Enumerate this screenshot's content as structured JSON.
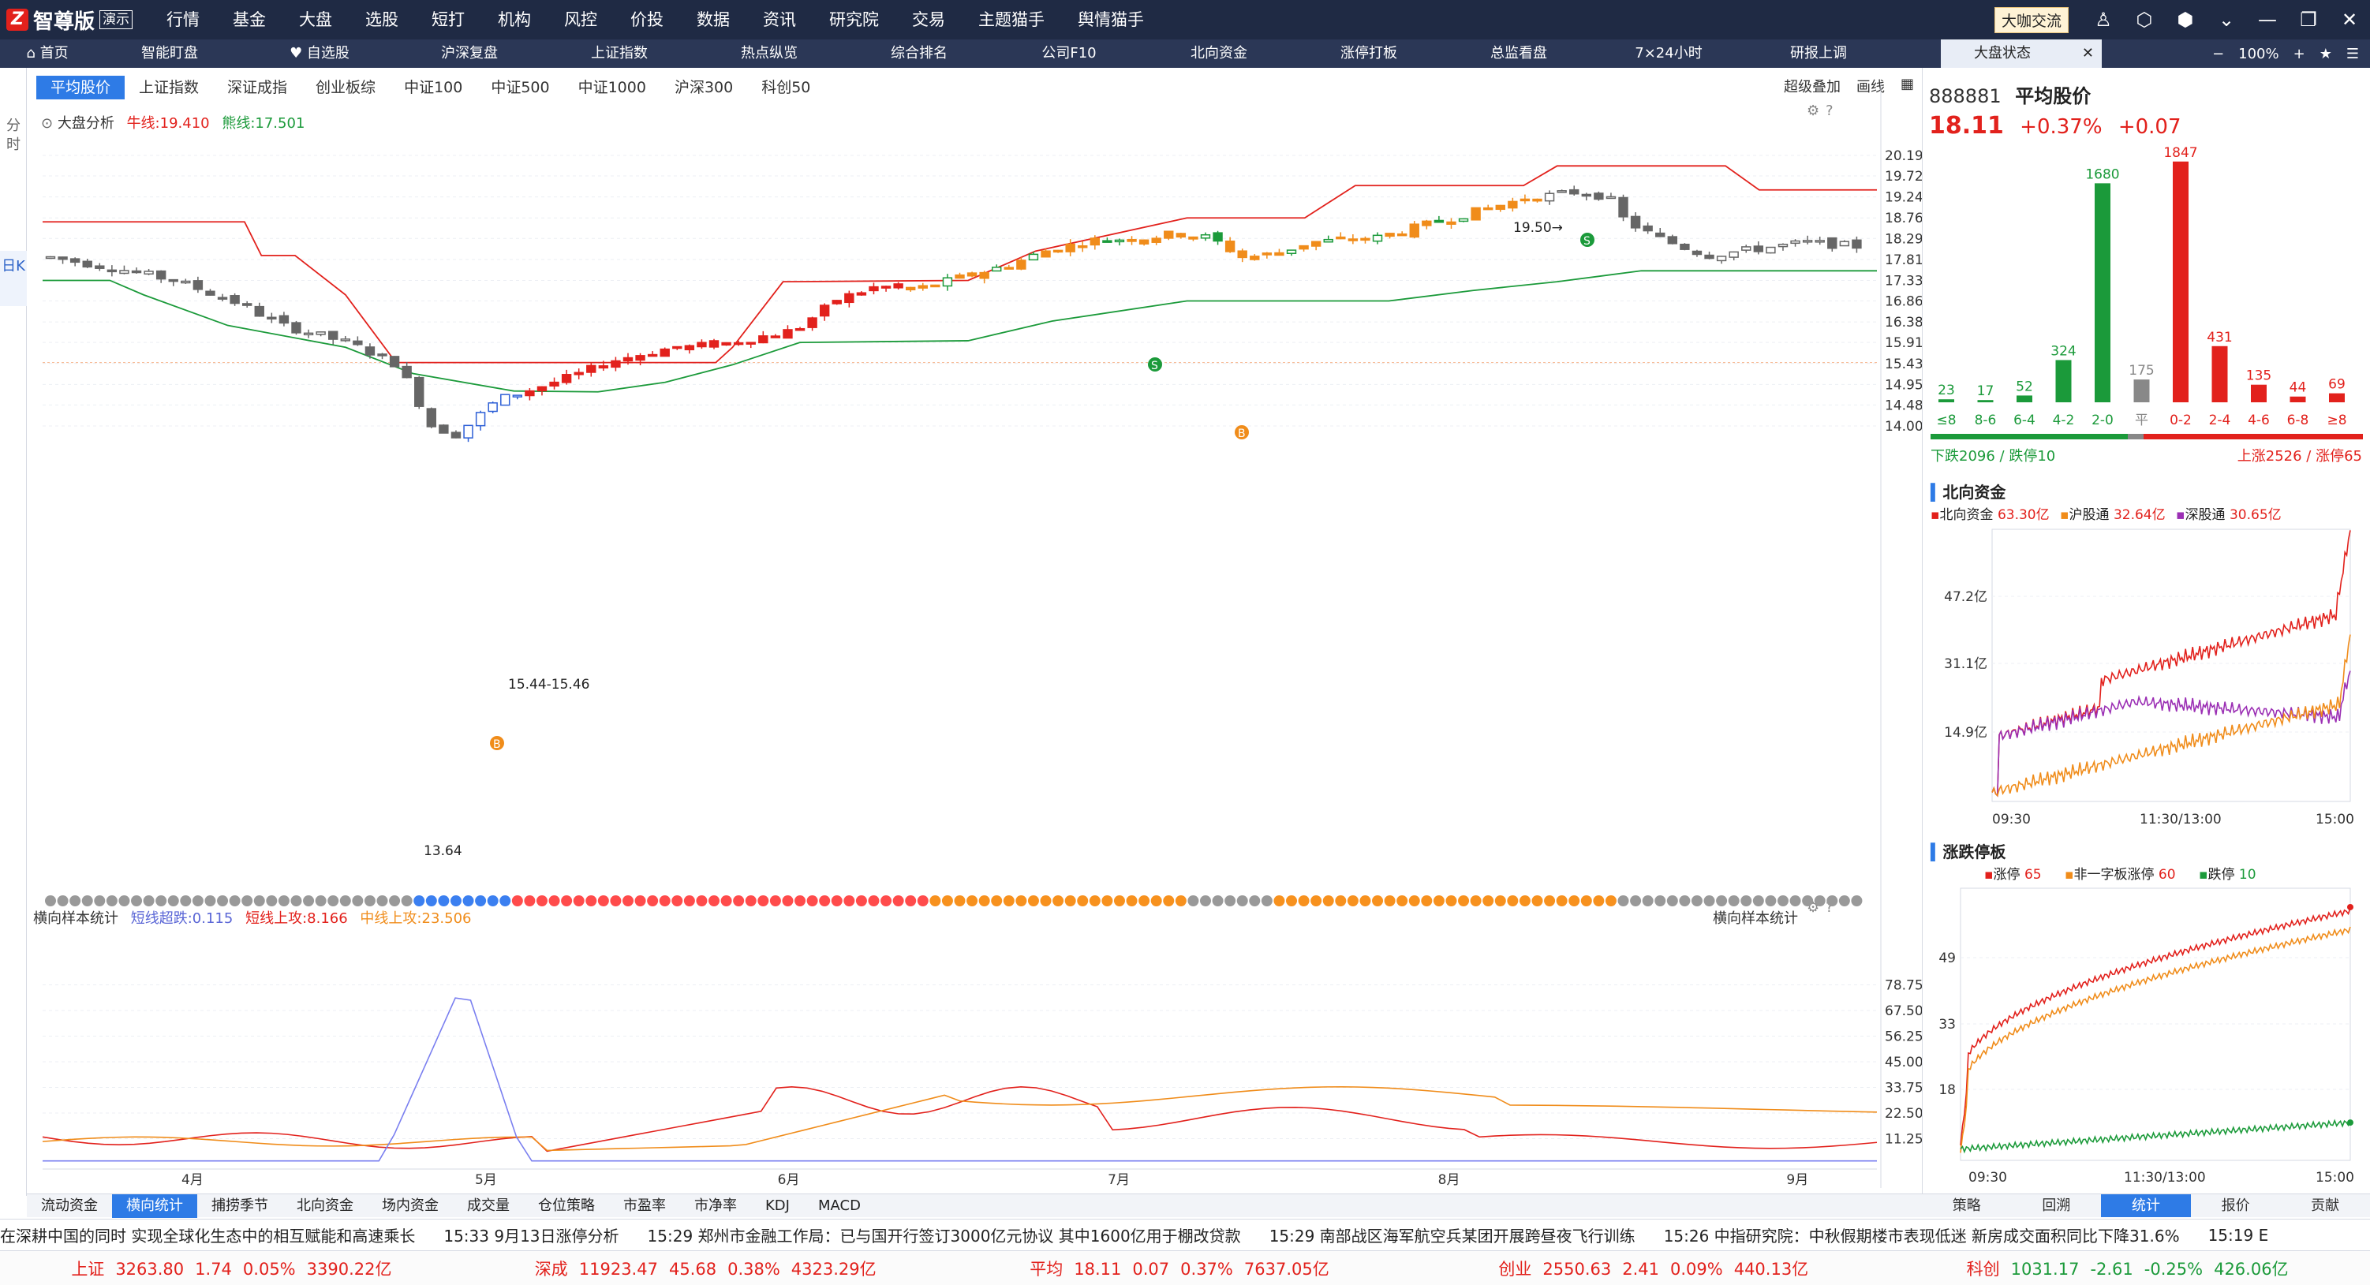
{
  "app": {
    "logo_text": "智尊版",
    "logo_badge": "演示",
    "menu": [
      "行情",
      "基金",
      "大盘",
      "选股",
      "短打",
      "机构",
      "风控",
      "价投",
      "数据",
      "资讯",
      "研究院",
      "交易",
      "主题猫手",
      "舆情猫手"
    ],
    "exchange_btn": "大咖交流"
  },
  "tabs": [
    "首页",
    "智能盯盘",
    "自选股",
    "沪深复盘",
    "上证指数",
    "热点纵览",
    "综合排名",
    "公司F10",
    "北向资金",
    "涨停打板",
    "总监看盘",
    "7×24小时",
    "研报上调"
  ],
  "active_tab": "大盘状态",
  "zoom": "100%",
  "left_tabs": [
    "分时",
    "日K"
  ],
  "index_tabs": [
    "平均股价",
    "上证指数",
    "深证成指",
    "创业板综",
    "中证100",
    "中证500",
    "中证1000",
    "沪深300",
    "科创50"
  ],
  "right_tools": [
    "超级叠加",
    "画线"
  ],
  "main_legend": {
    "name": "大盘分析",
    "bull": "牛线:19.410",
    "bear": "熊线:17.501"
  },
  "price_axis": [
    "20.19",
    "19.72",
    "19.24",
    "18.76",
    "18.29",
    "17.81",
    "17.33",
    "16.86",
    "16.38",
    "15.91",
    "15.43",
    "14.95",
    "14.48",
    "14.00"
  ],
  "annotations": {
    "high": "19.50→",
    "low": "13.64",
    "level": "15.44-15.46"
  },
  "lower_legend": {
    "name": "横向样本统计",
    "a": "短线超跌:0.115",
    "b": "短线上攻:8.166",
    "c": "中线上攻:23.506",
    "right": "横向样本统计"
  },
  "lower_axis": [
    "78.75",
    "67.50",
    "56.25",
    "45.00",
    "33.75",
    "22.50",
    "11.25"
  ],
  "months": [
    "4月",
    "5月",
    "6月",
    "7月",
    "8月",
    "9月"
  ],
  "bottom_tabs": [
    "流动资金",
    "横向统计",
    "捕捞季节",
    "北向资金",
    "场内资金",
    "成交量",
    "仓位策略",
    "市盈率",
    "市净率",
    "KDJ",
    "MACD"
  ],
  "stock": {
    "code": "888881",
    "name": "平均股价",
    "price": "18.11",
    "pct": "+0.37%",
    "chg": "+0.07"
  },
  "dist": {
    "labels": [
      "≤8",
      "8-6",
      "6-4",
      "4-2",
      "2-0",
      "平",
      "0-2",
      "2-4",
      "4-6",
      "6-8",
      "≥8"
    ],
    "values": [
      23,
      17,
      52,
      324,
      1680,
      175,
      1847,
      431,
      135,
      44,
      69
    ],
    "down": "下跌2096 / 跌停10",
    "up": "上涨2526 / 涨停65"
  },
  "north": {
    "title": "北向资金",
    "s1": "北向资金",
    "v1": "63.30亿",
    "s2": "沪股通",
    "v2": "32.64亿",
    "s3": "深股通",
    "v3": "30.65亿",
    "y": [
      "47.2亿",
      "31.1亿",
      "14.9亿"
    ],
    "x": [
      "09:30",
      "11:30/13:00",
      "15:00"
    ]
  },
  "limit": {
    "title": "涨跌停板",
    "s1": "涨停",
    "v1": "65",
    "s2": "非一字板涨停",
    "v2": "60",
    "s3": "跌停",
    "v3": "10",
    "y": [
      "49",
      "33",
      "18"
    ],
    "x": [
      "09:30",
      "11:30/13:00",
      "15:00"
    ]
  },
  "rp_tabs": [
    "策略",
    "回溯",
    "统计",
    "报价",
    "贡献"
  ],
  "news": [
    "在深耕中国的同时 实现全球化生态中的相互赋能和高速乘长",
    "15:33 9月13日涨停分析",
    "15:29 郑州市金融工作局：已与国开行签订3000亿元协议 其中1600亿用于棚改贷款",
    "15:29 南部战区海军航空兵某团开展跨昼夜飞行训练",
    "15:26 中指研究院：中秋假期楼市表现低迷 新房成交面积同比下降31.6%",
    "15:19 E"
  ],
  "tickers": [
    {
      "name": "上证",
      "v": "3263.80",
      "c": "1.74",
      "p": "0.05%",
      "a": "3390.22亿"
    },
    {
      "name": "深成",
      "v": "11923.47",
      "c": "45.68",
      "p": "0.38%",
      "a": "4323.29亿"
    },
    {
      "name": "平均",
      "v": "18.11",
      "c": "0.07",
      "p": "0.37%",
      "a": "7637.05亿"
    },
    {
      "name": "创业",
      "v": "2550.63",
      "c": "2.41",
      "p": "0.09%",
      "a": "440.13亿"
    },
    {
      "name": "科创",
      "v": "1031.17",
      "c": "-2.61",
      "p": "-0.25%",
      "a": "426.06亿"
    }
  ]
}
